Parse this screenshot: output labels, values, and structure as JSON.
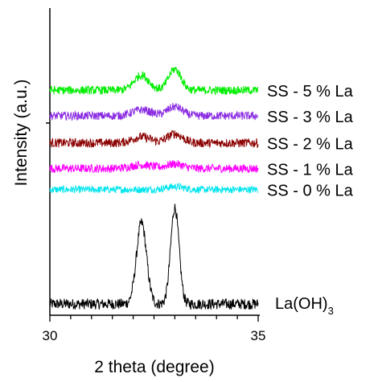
{
  "chart_data": {
    "type": "line",
    "xlabel": "2 theta (degree)",
    "ylabel": "Intensity (a.u.)",
    "xlim": [
      30,
      35
    ],
    "x_ticks": [
      "30",
      "35"
    ],
    "grid": false,
    "series": [
      {
        "name": "La(OH)",
        "name_sub": "3",
        "color": "#000000",
        "baseline": 0.0,
        "noise": 0.018,
        "peaks": [
          {
            "x": 32.2,
            "h": 0.27,
            "w": 0.12
          },
          {
            "x": 33.0,
            "h": 0.32,
            "w": 0.1
          }
        ]
      },
      {
        "name": "SS - 0 % La",
        "color": "#00e5ee",
        "baseline": 0.38,
        "noise": 0.012,
        "peaks": [
          {
            "x": 33.0,
            "h": 0.01,
            "w": 0.2
          }
        ]
      },
      {
        "name": "SS - 1 % La",
        "color": "#ff00ff",
        "baseline": 0.45,
        "noise": 0.014,
        "peaks": [
          {
            "x": 32.2,
            "h": 0.012,
            "w": 0.25
          },
          {
            "x": 33.0,
            "h": 0.015,
            "w": 0.2
          }
        ]
      },
      {
        "name": "SS - 2 % La",
        "color": "#8b0000",
        "baseline": 0.535,
        "noise": 0.015,
        "peaks": [
          {
            "x": 32.2,
            "h": 0.02,
            "w": 0.22
          },
          {
            "x": 33.0,
            "h": 0.03,
            "w": 0.18
          }
        ]
      },
      {
        "name": "SS - 3 % La",
        "color": "#8a2be2",
        "baseline": 0.625,
        "noise": 0.014,
        "peaks": [
          {
            "x": 32.2,
            "h": 0.02,
            "w": 0.22
          },
          {
            "x": 33.0,
            "h": 0.03,
            "w": 0.18
          }
        ]
      },
      {
        "name": "SS - 5 % La",
        "color": "#00ee00",
        "baseline": 0.71,
        "noise": 0.014,
        "peaks": [
          {
            "x": 32.2,
            "h": 0.05,
            "w": 0.18
          },
          {
            "x": 33.0,
            "h": 0.07,
            "w": 0.15
          }
        ]
      }
    ]
  }
}
